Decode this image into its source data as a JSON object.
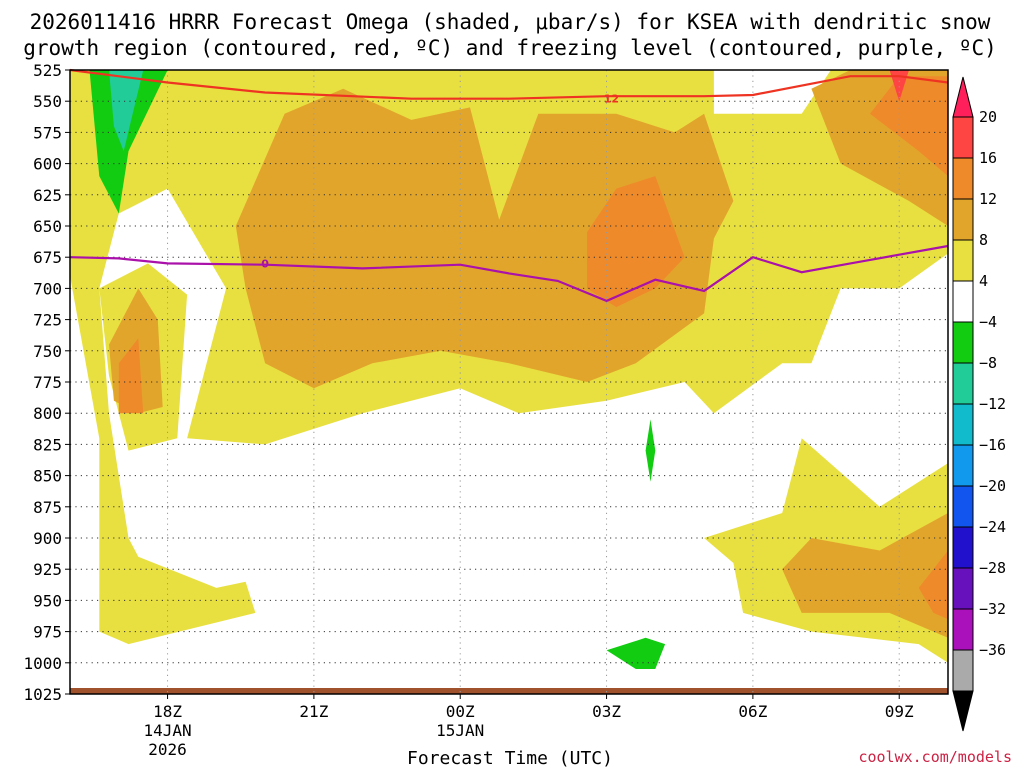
{
  "chart_data": {
    "type": "heatmap",
    "title_line1": "2026011416 HRRR Forecast Omega (shaded, μbar/s) for KSEA with dendritic snow",
    "title_line2": "growth region (contoured, red, ºC) and freezing level (contoured, purple, ºC)",
    "xlabel": "Forecast Time (UTC)",
    "ylim": [
      1025,
      525
    ],
    "xlim": [
      15,
      24
    ],
    "y_ticks": [
      525,
      550,
      575,
      600,
      625,
      650,
      675,
      700,
      725,
      750,
      775,
      800,
      825,
      850,
      875,
      900,
      925,
      950,
      975,
      1000,
      1025
    ],
    "y_tick_labels": [
      "525",
      "550",
      "575",
      "600",
      "625",
      "650",
      "675",
      "700",
      "725",
      "750",
      "775",
      "800",
      "825",
      "850",
      "875",
      "900",
      "925",
      "950",
      "975",
      "1000",
      "1025"
    ],
    "x_ticks": [
      {
        "x": 16,
        "label": "18Z",
        "sub1": "14JAN",
        "sub2": "2026"
      },
      {
        "x": 17.5,
        "label": "21Z",
        "sub1": "",
        "sub2": ""
      },
      {
        "x": 19,
        "label": "00Z",
        "sub1": "15JAN",
        "sub2": ""
      },
      {
        "x": 20.5,
        "label": "03Z",
        "sub1": "",
        "sub2": ""
      },
      {
        "x": 22,
        "label": "06Z",
        "sub1": "",
        "sub2": ""
      },
      {
        "x": 23.5,
        "label": "09Z",
        "sub1": "",
        "sub2": ""
      }
    ],
    "colorbar": {
      "levels": [
        "20",
        "16",
        "12",
        "8",
        "4",
        "−4",
        "−8",
        "−12",
        "−16",
        "−20",
        "−24",
        "−28",
        "−32",
        "−36"
      ],
      "colors": [
        "#ff1f5a",
        "#ff4444",
        "#ee8a2a",
        "#e2a52c",
        "#e8e040",
        "#ffffff",
        "#11cc11",
        "#22cc99",
        "#11bbcc",
        "#1199ee",
        "#1155ee",
        "#2211cc",
        "#6611bb",
        "#aa11bb",
        "#aaaaaa",
        "#000000"
      ]
    },
    "shading_regions": [
      {
        "level": "4",
        "color": "#e8e040",
        "points": [
          [
            15,
            525
          ],
          [
            21.6,
            525
          ],
          [
            21.6,
            560
          ],
          [
            22.5,
            560
          ],
          [
            22.8,
            525
          ],
          [
            24,
            525
          ],
          [
            24,
            672
          ],
          [
            23.5,
            700
          ],
          [
            22.9,
            700
          ],
          [
            22.6,
            760
          ],
          [
            22.3,
            760
          ],
          [
            21.6,
            800
          ],
          [
            21.3,
            775
          ],
          [
            20.5,
            790
          ],
          [
            19.6,
            800
          ],
          [
            19,
            780
          ],
          [
            18,
            800
          ],
          [
            17,
            825
          ],
          [
            16.2,
            820
          ],
          [
            16.6,
            700
          ],
          [
            16.0,
            620
          ],
          [
            15.5,
            640
          ],
          [
            15.3,
            700
          ],
          [
            15.4,
            800
          ],
          [
            15.6,
            900
          ],
          [
            15.7,
            915
          ],
          [
            16.5,
            940
          ],
          [
            16.8,
            935
          ],
          [
            16.9,
            960
          ],
          [
            15.6,
            985
          ],
          [
            15.3,
            975
          ],
          [
            15.3,
            820
          ],
          [
            15.0,
            690
          ]
        ]
      },
      {
        "level": "4",
        "color": "#e8e040",
        "points": [
          [
            21.5,
            900
          ],
          [
            22.3,
            880
          ],
          [
            22.5,
            820
          ],
          [
            23.3,
            875
          ],
          [
            24,
            840
          ],
          [
            24,
            1000
          ],
          [
            23.7,
            985
          ],
          [
            22.6,
            975
          ],
          [
            21.9,
            960
          ],
          [
            21.8,
            920
          ]
        ]
      },
      {
        "level": "4",
        "color": "#e8e040",
        "points": [
          [
            15.3,
            700
          ],
          [
            15.8,
            680
          ],
          [
            16.2,
            705
          ],
          [
            16.1,
            820
          ],
          [
            15.6,
            830
          ],
          [
            15.4,
            770
          ]
        ]
      },
      {
        "level": "8",
        "color": "#e2a52c",
        "points": [
          [
            16.7,
            650
          ],
          [
            17.2,
            560
          ],
          [
            17.8,
            540
          ],
          [
            18.5,
            565
          ],
          [
            19.1,
            555
          ],
          [
            19.4,
            645
          ],
          [
            19.8,
            560
          ],
          [
            20.6,
            560
          ],
          [
            21.2,
            575
          ],
          [
            21.5,
            560
          ],
          [
            21.8,
            630
          ],
          [
            21.6,
            660
          ],
          [
            21.5,
            720
          ],
          [
            20.8,
            760
          ],
          [
            20.3,
            775
          ],
          [
            19.5,
            760
          ],
          [
            18.8,
            750
          ],
          [
            18.1,
            760
          ],
          [
            17.5,
            780
          ],
          [
            17.0,
            760
          ],
          [
            16.8,
            700
          ]
        ]
      },
      {
        "level": "8",
        "color": "#e2a52c",
        "points": [
          [
            15.4,
            745
          ],
          [
            15.7,
            700
          ],
          [
            15.9,
            725
          ],
          [
            15.95,
            795
          ],
          [
            15.7,
            800
          ],
          [
            15.45,
            790
          ]
        ]
      },
      {
        "level": "8",
        "color": "#e2a52c",
        "points": [
          [
            22.6,
            540
          ],
          [
            23.0,
            525
          ],
          [
            24,
            525
          ],
          [
            24,
            650
          ],
          [
            23.6,
            630
          ],
          [
            22.9,
            600
          ]
        ]
      },
      {
        "level": "8",
        "color": "#e2a52c",
        "points": [
          [
            22.3,
            925
          ],
          [
            22.6,
            900
          ],
          [
            23.3,
            910
          ],
          [
            24,
            880
          ],
          [
            24,
            980
          ],
          [
            23.4,
            960
          ],
          [
            22.5,
            960
          ]
        ]
      },
      {
        "level": "12",
        "color": "#ee8a2a",
        "points": [
          [
            20.3,
            655
          ],
          [
            20.6,
            620
          ],
          [
            21.0,
            610
          ],
          [
            21.3,
            675
          ],
          [
            21.0,
            700
          ],
          [
            20.6,
            715
          ],
          [
            20.3,
            700
          ]
        ]
      },
      {
        "level": "12",
        "color": "#ee8a2a",
        "points": [
          [
            15.5,
            760
          ],
          [
            15.7,
            740
          ],
          [
            15.75,
            800
          ],
          [
            15.5,
            800
          ]
        ]
      },
      {
        "level": "12",
        "color": "#ee8a2a",
        "points": [
          [
            23.2,
            560
          ],
          [
            23.5,
            530
          ],
          [
            24,
            530
          ],
          [
            24,
            610
          ],
          [
            23.7,
            590
          ]
        ]
      },
      {
        "level": "12",
        "color": "#ee8a2a",
        "points": [
          [
            23.7,
            940
          ],
          [
            24,
            910
          ],
          [
            24,
            965
          ],
          [
            23.85,
            960
          ]
        ]
      },
      {
        "level": "16",
        "color": "#ff4444",
        "points": [
          [
            23.4,
            525
          ],
          [
            23.6,
            525
          ],
          [
            23.5,
            550
          ]
        ]
      },
      {
        "level": "−4",
        "color": "#11cc11",
        "points": [
          [
            15.2,
            525
          ],
          [
            16.0,
            525
          ],
          [
            15.6,
            590
          ],
          [
            15.5,
            640
          ],
          [
            15.3,
            610
          ]
        ]
      },
      {
        "level": "−8",
        "color": "#22cc99",
        "points": [
          [
            15.4,
            525
          ],
          [
            15.75,
            525
          ],
          [
            15.55,
            590
          ],
          [
            15.45,
            570
          ]
        ]
      },
      {
        "level": "−4",
        "color": "#11cc11",
        "points": [
          [
            20.95,
            805
          ],
          [
            21.0,
            830
          ],
          [
            20.95,
            855
          ],
          [
            20.9,
            830
          ]
        ]
      },
      {
        "level": "−4",
        "color": "#11cc11",
        "points": [
          [
            20.5,
            990
          ],
          [
            20.9,
            980
          ],
          [
            21.1,
            985
          ],
          [
            21.0,
            1005
          ],
          [
            20.8,
            1005
          ]
        ]
      }
    ],
    "contours": [
      {
        "name": "dendritic-snow-growth -12",
        "label": "12",
        "color": "#ee3322",
        "label_at": [
          20.55,
          548
        ],
        "points": [
          [
            15,
            525
          ],
          [
            16,
            535
          ],
          [
            17,
            543
          ],
          [
            18.5,
            548
          ],
          [
            19.5,
            548
          ],
          [
            20.5,
            546
          ],
          [
            21.5,
            546
          ],
          [
            22,
            545
          ],
          [
            23,
            530
          ],
          [
            23.5,
            530
          ],
          [
            24,
            535
          ]
        ]
      },
      {
        "name": "freezing-level 0",
        "label": "0",
        "color": "#aa11aa",
        "label_at": [
          17.0,
          680
        ],
        "points": [
          [
            15,
            675
          ],
          [
            15.5,
            676
          ],
          [
            16,
            680
          ],
          [
            17,
            681
          ],
          [
            18,
            684
          ],
          [
            19,
            681
          ],
          [
            19.5,
            688
          ],
          [
            20,
            694
          ],
          [
            20.5,
            710
          ],
          [
            21,
            693
          ],
          [
            21.5,
            702
          ],
          [
            22,
            675
          ],
          [
            22.5,
            687
          ],
          [
            23,
            680
          ],
          [
            24,
            666
          ]
        ]
      }
    ],
    "surface_color": "#a0522d",
    "credit": "coolwx.com/models"
  }
}
